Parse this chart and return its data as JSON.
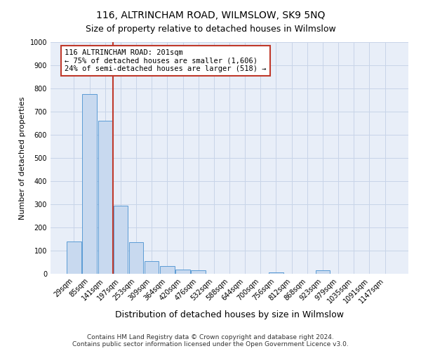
{
  "title": "116, ALTRINCHAM ROAD, WILMSLOW, SK9 5NQ",
  "subtitle": "Size of property relative to detached houses in Wilmslow",
  "xlabel": "Distribution of detached houses by size in Wilmslow",
  "ylabel": "Number of detached properties",
  "bar_labels": [
    "29sqm",
    "85sqm",
    "141sqm",
    "197sqm",
    "253sqm",
    "309sqm",
    "364sqm",
    "420sqm",
    "476sqm",
    "532sqm",
    "588sqm",
    "644sqm",
    "700sqm",
    "756sqm",
    "812sqm",
    "868sqm",
    "923sqm",
    "979sqm",
    "1035sqm",
    "1091sqm",
    "1147sqm"
  ],
  "bar_heights": [
    140,
    775,
    660,
    293,
    135,
    55,
    32,
    18,
    15,
    0,
    0,
    0,
    0,
    5,
    0,
    0,
    15,
    0,
    0,
    0,
    0
  ],
  "bar_color": "#c8d9ef",
  "bar_edge_color": "#5b9bd5",
  "vline_color": "#c0392b",
  "vline_position": 2.5,
  "annotation_text": "116 ALTRINCHAM ROAD: 201sqm\n← 75% of detached houses are smaller (1,606)\n24% of semi-detached houses are larger (518) →",
  "annotation_box_edgecolor": "#c0392b",
  "annotation_box_facecolor": "#ffffff",
  "ylim": [
    0,
    1000
  ],
  "yticks": [
    0,
    100,
    200,
    300,
    400,
    500,
    600,
    700,
    800,
    900,
    1000
  ],
  "footer": "Contains HM Land Registry data © Crown copyright and database right 2024.\nContains public sector information licensed under the Open Government Licence v3.0.",
  "background_color": "#ffffff",
  "axes_bg_color": "#e8eef8",
  "grid_color": "#c8d4e8",
  "title_fontsize": 10,
  "subtitle_fontsize": 9,
  "xlabel_fontsize": 9,
  "ylabel_fontsize": 8,
  "tick_fontsize": 7,
  "annotation_fontsize": 7.5,
  "footer_fontsize": 6.5
}
